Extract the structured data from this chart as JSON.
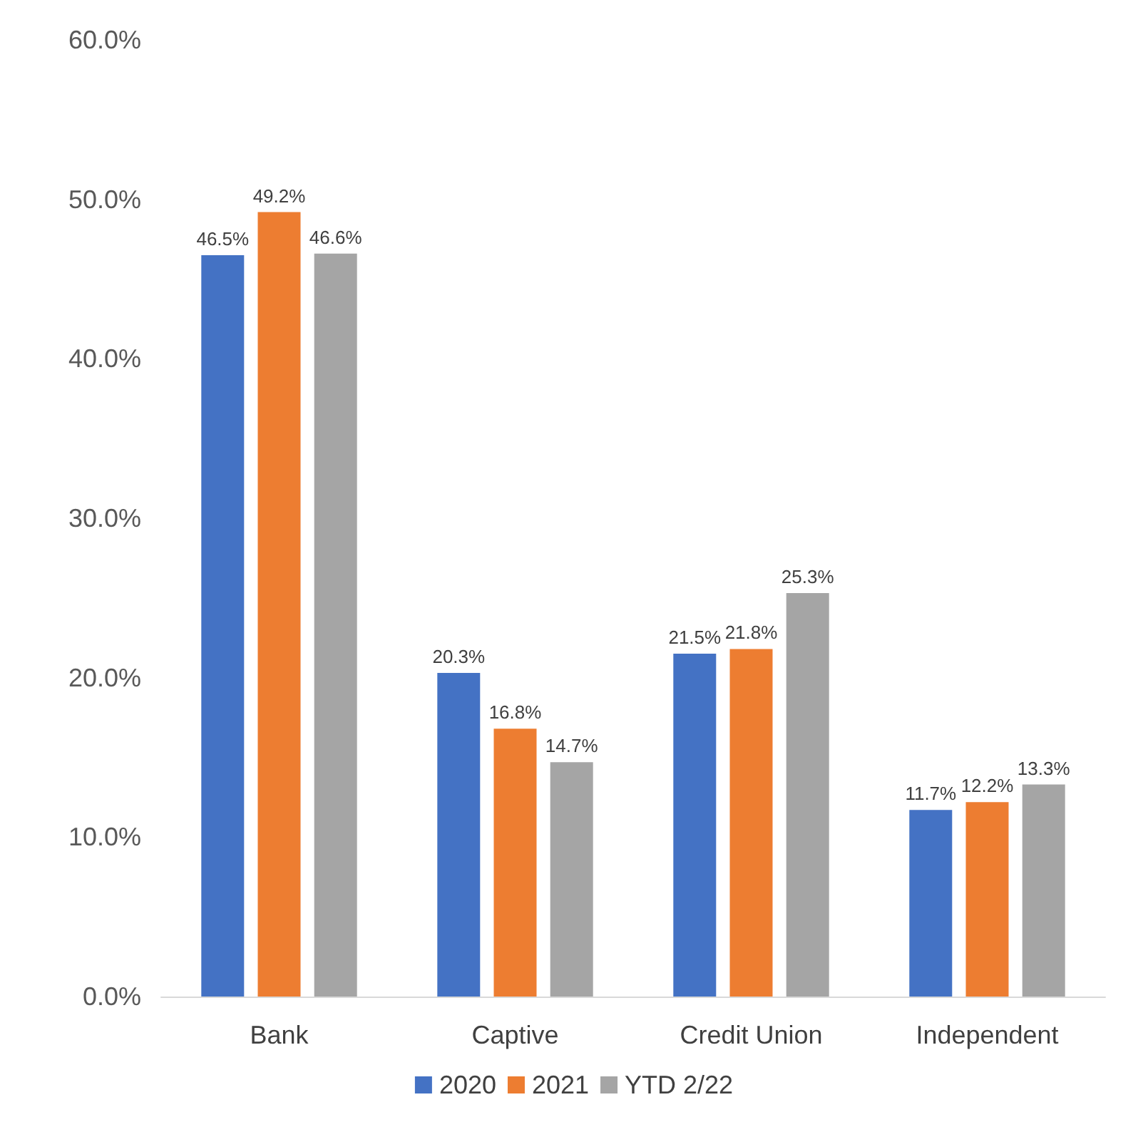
{
  "chart_data": {
    "type": "bar",
    "categories": [
      "Bank",
      "Captive",
      "Credit Union",
      "Independent"
    ],
    "series": [
      {
        "name": "2020",
        "color": "#4472c4",
        "values": [
          46.5,
          20.3,
          21.5,
          11.7
        ],
        "value_labels": [
          "46.5%",
          "20.3%",
          "21.5%",
          "11.7%"
        ]
      },
      {
        "name": "2021",
        "color": "#ed7d31",
        "values": [
          49.2,
          16.8,
          21.8,
          12.2
        ],
        "value_labels": [
          "49.2%",
          "16.8%",
          "21.8%",
          "12.2%"
        ]
      },
      {
        "name": "YTD 2/22",
        "color": "#a5a5a5",
        "values": [
          46.6,
          14.7,
          25.3,
          13.3
        ],
        "value_labels": [
          "46.6%",
          "14.7%",
          "25.3%",
          "13.3%"
        ]
      }
    ],
    "ylim": [
      0,
      60
    ],
    "yticks": [
      {
        "value": 0,
        "label": "0.0%"
      },
      {
        "value": 10,
        "label": "10.0%"
      },
      {
        "value": 20,
        "label": "20.0%"
      },
      {
        "value": 30,
        "label": "30.0%"
      },
      {
        "value": 40,
        "label": "40.0%"
      },
      {
        "value": 50,
        "label": "50.0%"
      },
      {
        "value": 60,
        "label": "60.0%"
      }
    ],
    "grid": false,
    "legend": "bottom"
  }
}
